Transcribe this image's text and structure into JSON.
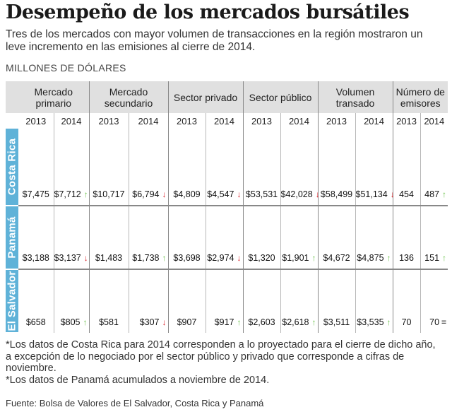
{
  "title": "Desempeño de los mercados bursátiles",
  "subtitle": "Tres de los mercados con mayor volumen de transacciones en la región mostraron un leve incremento en las emisiones al cierre de 2014.",
  "units": "MILLONES DE DÓLARES",
  "chart_data": {
    "type": "table",
    "units": "MILLONES DE DÓLARES",
    "columns": [
      {
        "label": "Mercado primario",
        "years": [
          "2013",
          "2014"
        ]
      },
      {
        "label": "Mercado secundario",
        "years": [
          "2013",
          "2014"
        ]
      },
      {
        "label": "Sector privado",
        "years": [
          "2013",
          "2014"
        ]
      },
      {
        "label": "Sector público",
        "years": [
          "2013",
          "2014"
        ]
      },
      {
        "label": "Volumen transado",
        "years": [
          "2013",
          "2014"
        ]
      },
      {
        "label": "Número de emisores",
        "years": [
          "2013",
          "2014"
        ]
      }
    ],
    "rows": [
      {
        "country": "Costa Rica",
        "values": [
          {
            "v2013": "$7,475",
            "v2014": "$7,712",
            "trend": "up"
          },
          {
            "v2013": "$10,717",
            "v2014": "$6,794",
            "trend": "down"
          },
          {
            "v2013": "$4,809",
            "v2014": "$4,547",
            "trend": "down"
          },
          {
            "v2013": "$53,531",
            "v2014": "$42,028",
            "trend": "down"
          },
          {
            "v2013": "$58,499",
            "v2014": "$51,134",
            "trend": "down"
          },
          {
            "v2013": "454",
            "v2014": "487",
            "trend": "up"
          }
        ]
      },
      {
        "country": "Panamá",
        "values": [
          {
            "v2013": "$3,188",
            "v2014": "$3,137",
            "trend": "down"
          },
          {
            "v2013": "$1,483",
            "v2014": "$1,738",
            "trend": "up"
          },
          {
            "v2013": "$3,698",
            "v2014": "$2,974",
            "trend": "down"
          },
          {
            "v2013": "$1,320",
            "v2014": "$1,901",
            "trend": "up"
          },
          {
            "v2013": "$4,672",
            "v2014": "$4,875",
            "trend": "up"
          },
          {
            "v2013": "136",
            "v2014": "151",
            "trend": "up"
          }
        ]
      },
      {
        "country": "El Salvador",
        "values": [
          {
            "v2013": "$658",
            "v2014": "$805",
            "trend": "up"
          },
          {
            "v2013": "$581",
            "v2014": "$307",
            "trend": "down"
          },
          {
            "v2013": "$907",
            "v2014": "$917",
            "trend": "up"
          },
          {
            "v2013": "$2,603",
            "v2014": "$2,618",
            "trend": "up"
          },
          {
            "v2013": "$3,511",
            "v2014": "$3,535",
            "trend": "up"
          },
          {
            "v2013": "70",
            "v2014": "70",
            "trend": "equal"
          }
        ]
      }
    ],
    "trend_colors": {
      "up": "#6cc24a",
      "down": "#d92027",
      "equal": "#555555"
    },
    "country_band_color": "#5fb2d8",
    "header_background": "#e0e0e0"
  },
  "notes": [
    "*Los datos de Costa Rica para 2014 corresponden a lo proyectado para el cierre de dicho año, a excepción de lo negociado por el sector público y privado que corresponde a cifras de noviembre.",
    "*Los datos de Panamá acumulados a noviembre de 2014."
  ],
  "source": "Fuente: Bolsa de Valores de El Salvador, Costa Rica y Panamá"
}
